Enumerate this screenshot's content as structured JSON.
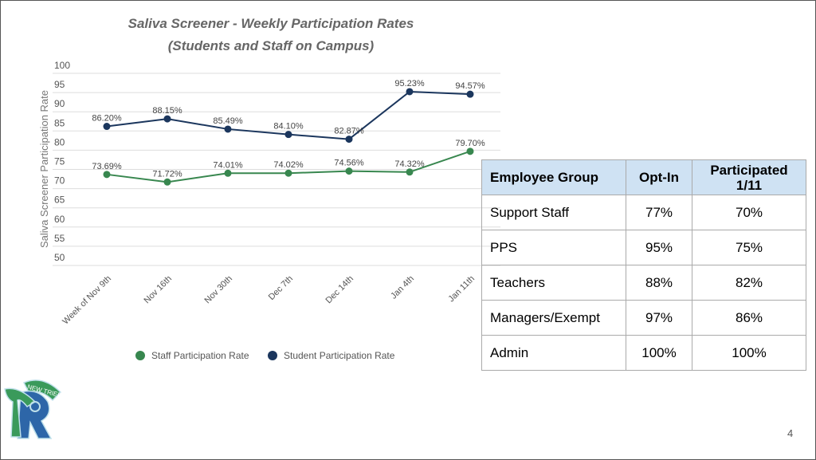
{
  "chart_data": {
    "type": "line",
    "title": [
      "Saliva Screener - Weekly Participation Rates",
      "(Students and Staff on Campus)"
    ],
    "ylabel": "Saliva Screener Participation Rate",
    "xlabel": "",
    "ylim": [
      50,
      100
    ],
    "yticks": [
      50,
      55,
      60,
      65,
      70,
      75,
      80,
      85,
      90,
      95,
      100
    ],
    "categories": [
      "Week of Nov 9th",
      "Nov 16th",
      "Nov 30th",
      "Dec 7th",
      "Dec 14th",
      "Jan 4th",
      "Jan 11th"
    ],
    "series": [
      {
        "name": "Staff Participation Rate",
        "color": "#38874f",
        "values": [
          73.69,
          71.72,
          74.01,
          74.02,
          74.56,
          74.32,
          79.7
        ],
        "labels": [
          "73.69%",
          "71.72%",
          "74.01%",
          "74.02%",
          "74.56%",
          "74.32%",
          "79.70%"
        ]
      },
      {
        "name": "Student Participation Rate",
        "color": "#1b365d",
        "values": [
          86.2,
          88.15,
          85.49,
          84.1,
          82.87,
          95.23,
          94.57
        ],
        "labels": [
          "86.20%",
          "88.15%",
          "85.49%",
          "84.10%",
          "82.87%",
          "95.23%",
          "94.57%"
        ]
      }
    ],
    "grid": true,
    "legend": "bottom"
  },
  "table": {
    "headers": [
      "Employee Group",
      "Opt-In",
      "Participated 1/11"
    ],
    "rows": [
      [
        "Support Staff",
        "77%",
        "70%"
      ],
      [
        "PPS",
        "95%",
        "75%"
      ],
      [
        "Teachers",
        "88%",
        "82%"
      ],
      [
        "Managers/Exempt",
        "97%",
        "86%"
      ],
      [
        "Admin",
        "100%",
        "100%"
      ]
    ]
  },
  "logo_text": "NEW TRIER",
  "page_number": "4"
}
